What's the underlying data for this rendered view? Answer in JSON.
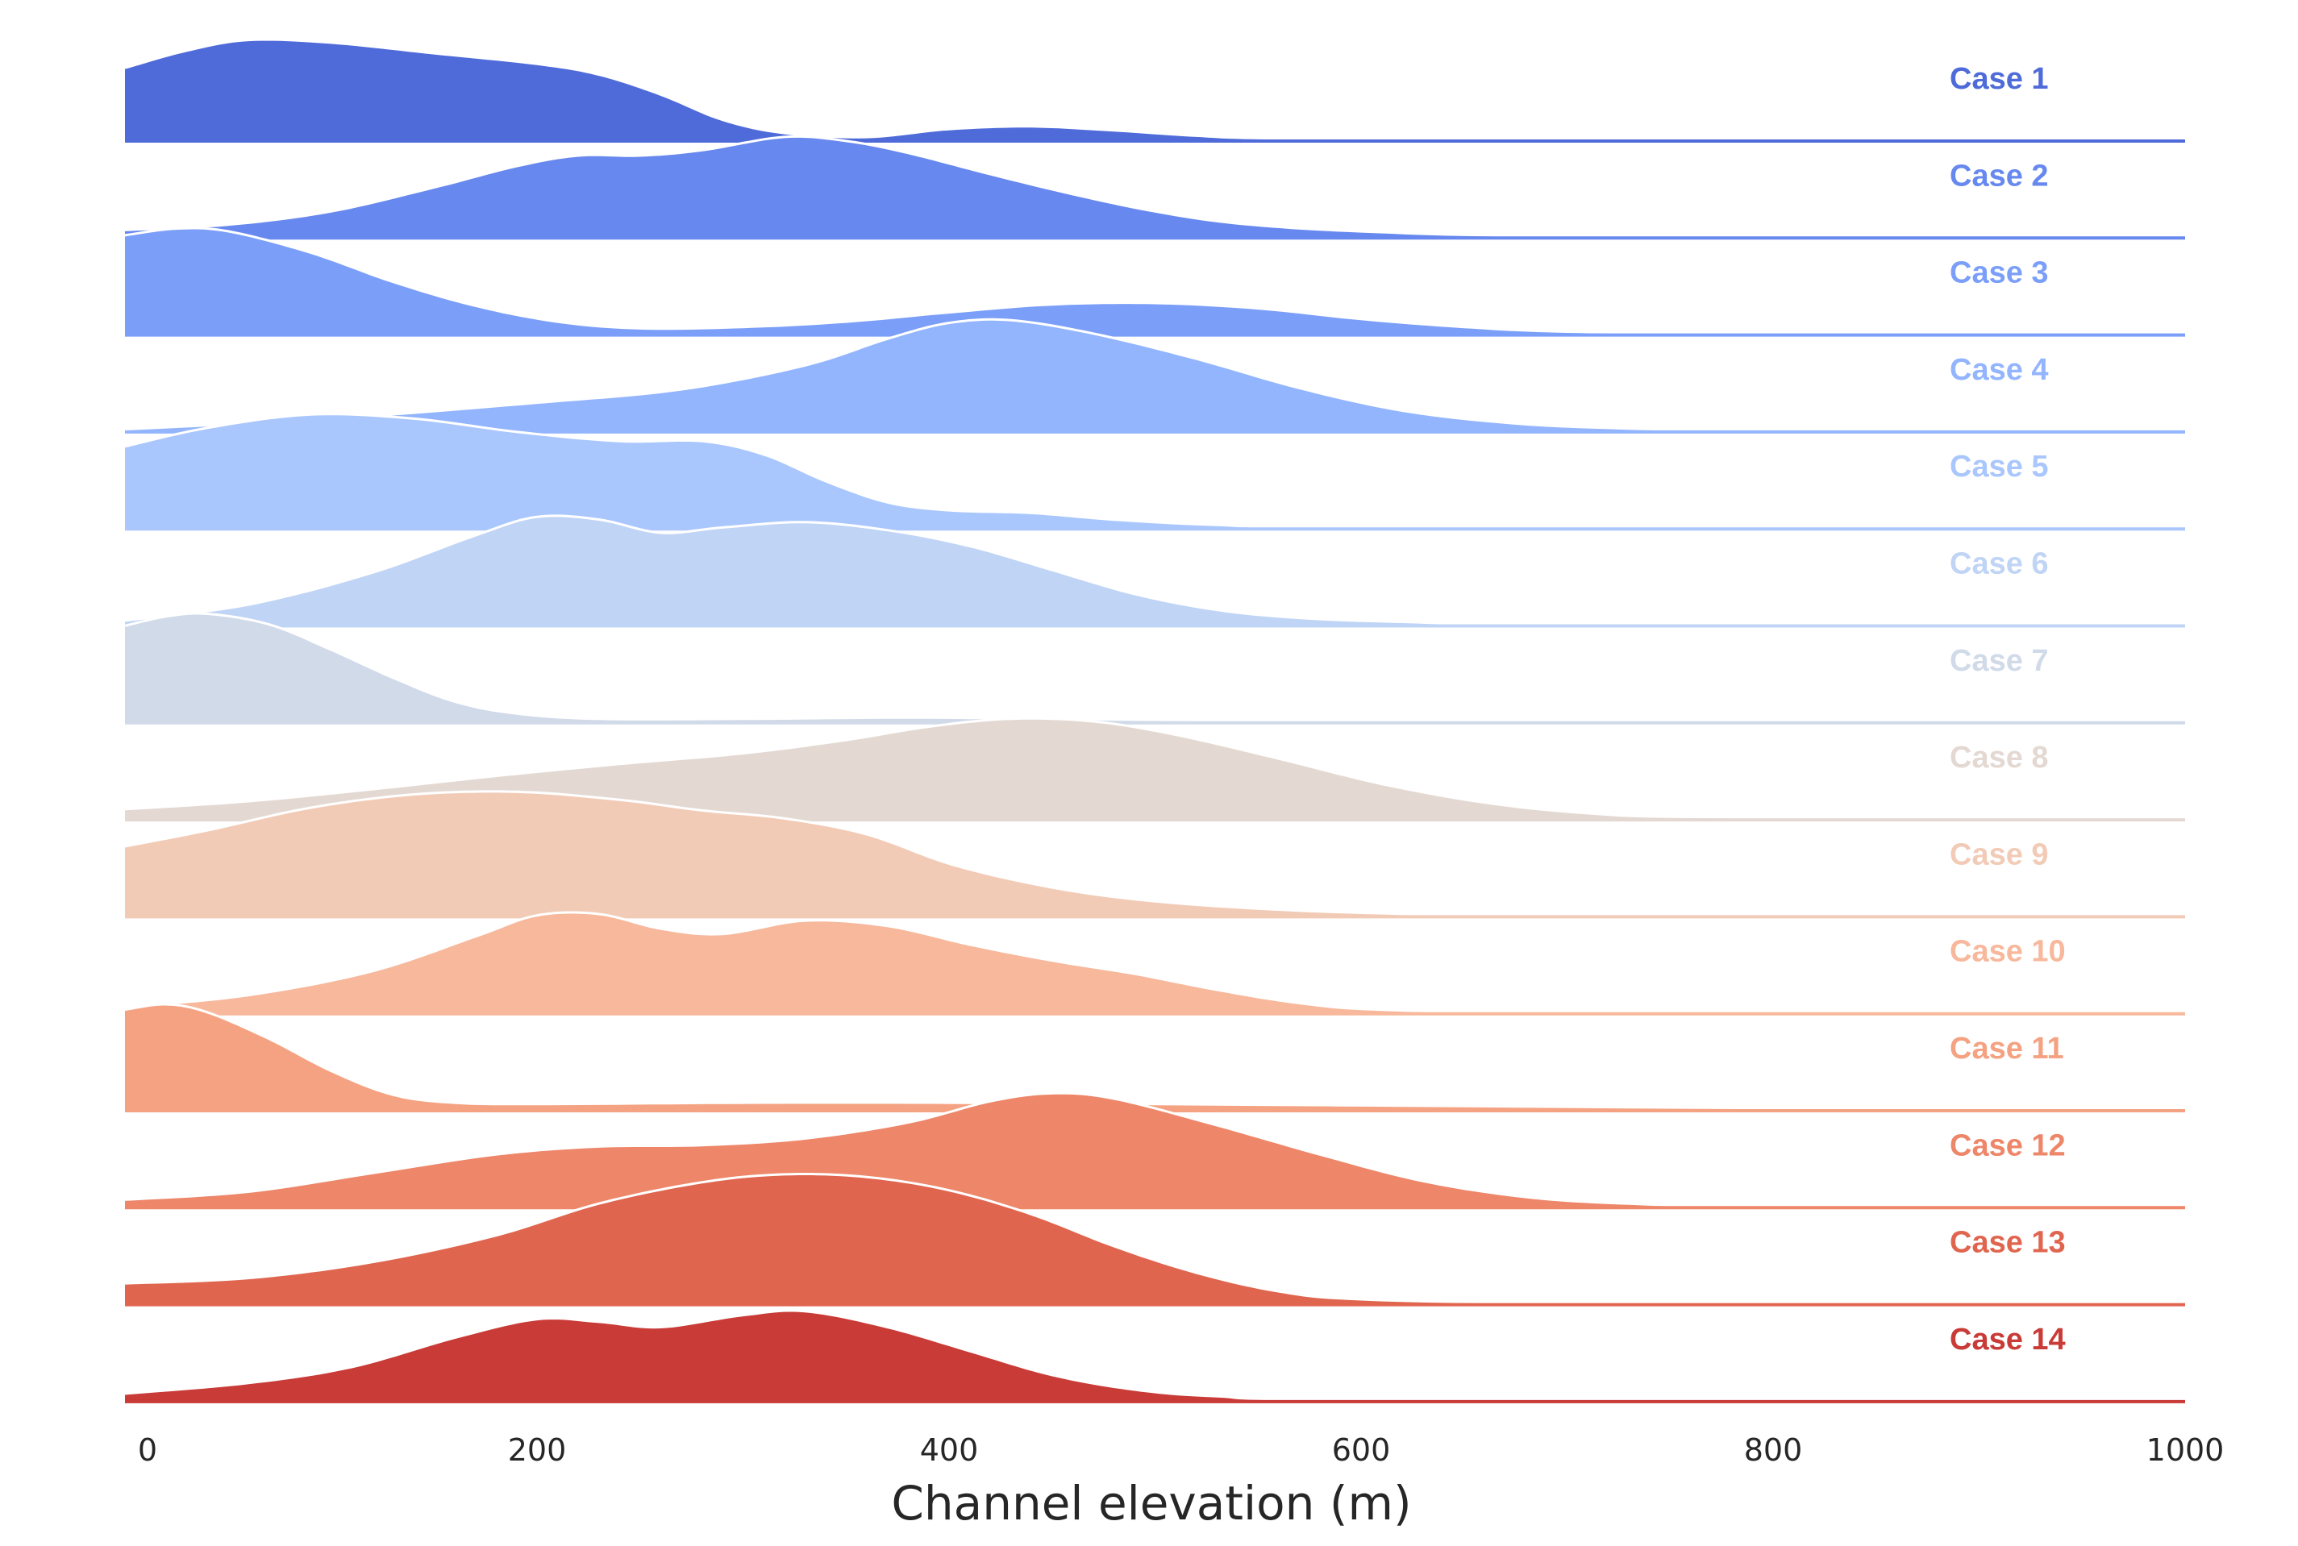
{
  "chart_data": {
    "type": "area",
    "chart_kind": "ridgeline",
    "title": "",
    "xlabel": "Channel elevation (m)",
    "ylabel": "",
    "xlim": [
      0,
      1000
    ],
    "x_ticks": [
      0,
      200,
      400,
      600,
      800,
      1000
    ],
    "grid": false,
    "legend": "labels at right of each ridge",
    "series": [
      {
        "name": "Case 1",
        "color": "#4f6bd9",
        "points": [
          [
            0,
            0.55
          ],
          [
            30,
            0.68
          ],
          [
            60,
            0.76
          ],
          [
            100,
            0.74
          ],
          [
            150,
            0.66
          ],
          [
            200,
            0.58
          ],
          [
            230,
            0.5
          ],
          [
            260,
            0.35
          ],
          [
            290,
            0.16
          ],
          [
            320,
            0.06
          ],
          [
            360,
            0.03
          ],
          [
            400,
            0.09
          ],
          [
            440,
            0.11
          ],
          [
            480,
            0.08
          ],
          [
            520,
            0.04
          ],
          [
            560,
            0.02
          ],
          [
            700,
            0.01
          ],
          [
            1000,
            0.01
          ]
        ]
      },
      {
        "name": "Case 2",
        "color": "#6788ee",
        "points": [
          [
            0,
            0.06
          ],
          [
            50,
            0.1
          ],
          [
            100,
            0.2
          ],
          [
            150,
            0.38
          ],
          [
            190,
            0.54
          ],
          [
            220,
            0.62
          ],
          [
            250,
            0.62
          ],
          [
            280,
            0.66
          ],
          [
            320,
            0.76
          ],
          [
            350,
            0.73
          ],
          [
            380,
            0.64
          ],
          [
            420,
            0.48
          ],
          [
            460,
            0.33
          ],
          [
            500,
            0.2
          ],
          [
            540,
            0.11
          ],
          [
            600,
            0.05
          ],
          [
            700,
            0.015
          ],
          [
            1000,
            0.01
          ]
        ]
      },
      {
        "name": "Case 3",
        "color": "#7b9ff9",
        "points": [
          [
            0,
            0.75
          ],
          [
            25,
            0.8
          ],
          [
            50,
            0.78
          ],
          [
            90,
            0.62
          ],
          [
            130,
            0.4
          ],
          [
            170,
            0.22
          ],
          [
            210,
            0.1
          ],
          [
            250,
            0.05
          ],
          [
            300,
            0.06
          ],
          [
            350,
            0.1
          ],
          [
            400,
            0.17
          ],
          [
            450,
            0.23
          ],
          [
            500,
            0.24
          ],
          [
            550,
            0.2
          ],
          [
            600,
            0.12
          ],
          [
            650,
            0.06
          ],
          [
            700,
            0.025
          ],
          [
            800,
            0.01
          ],
          [
            1000,
            0.01
          ]
        ]
      },
      {
        "name": "Case 4",
        "color": "#93b5fe",
        "points": [
          [
            0,
            0.02
          ],
          [
            100,
            0.1
          ],
          [
            200,
            0.22
          ],
          [
            270,
            0.32
          ],
          [
            330,
            0.5
          ],
          [
            370,
            0.7
          ],
          [
            400,
            0.82
          ],
          [
            430,
            0.84
          ],
          [
            470,
            0.74
          ],
          [
            520,
            0.55
          ],
          [
            570,
            0.33
          ],
          [
            620,
            0.16
          ],
          [
            670,
            0.07
          ],
          [
            720,
            0.03
          ],
          [
            800,
            0.01
          ],
          [
            1000,
            0.01
          ]
        ]
      },
      {
        "name": "Case 5",
        "color": "#aac7fd",
        "points": [
          [
            0,
            0.62
          ],
          [
            40,
            0.76
          ],
          [
            90,
            0.86
          ],
          [
            140,
            0.83
          ],
          [
            190,
            0.73
          ],
          [
            240,
            0.66
          ],
          [
            280,
            0.66
          ],
          [
            310,
            0.56
          ],
          [
            340,
            0.36
          ],
          [
            370,
            0.2
          ],
          [
            400,
            0.14
          ],
          [
            440,
            0.12
          ],
          [
            480,
            0.07
          ],
          [
            530,
            0.03
          ],
          [
            600,
            0.015
          ],
          [
            1000,
            0.01
          ]
        ]
      },
      {
        "name": "Case 6",
        "color": "#c0d4f5",
        "points": [
          [
            0,
            0.04
          ],
          [
            60,
            0.16
          ],
          [
            120,
            0.4
          ],
          [
            170,
            0.68
          ],
          [
            200,
            0.82
          ],
          [
            230,
            0.8
          ],
          [
            260,
            0.7
          ],
          [
            290,
            0.74
          ],
          [
            330,
            0.78
          ],
          [
            370,
            0.72
          ],
          [
            410,
            0.6
          ],
          [
            450,
            0.42
          ],
          [
            490,
            0.24
          ],
          [
            530,
            0.12
          ],
          [
            570,
            0.06
          ],
          [
            620,
            0.03
          ],
          [
            700,
            0.01
          ],
          [
            1000,
            0.01
          ]
        ]
      },
      {
        "name": "Case 7",
        "color": "#d1dae9",
        "points": [
          [
            0,
            0.73
          ],
          [
            20,
            0.8
          ],
          [
            40,
            0.82
          ],
          [
            70,
            0.74
          ],
          [
            100,
            0.55
          ],
          [
            130,
            0.34
          ],
          [
            160,
            0.16
          ],
          [
            190,
            0.07
          ],
          [
            230,
            0.03
          ],
          [
            300,
            0.03
          ],
          [
            380,
            0.04
          ],
          [
            450,
            0.03
          ],
          [
            520,
            0.02
          ],
          [
            600,
            0.015
          ],
          [
            1000,
            0.01
          ]
        ]
      },
      {
        "name": "Case 8",
        "color": "#e4d9d2",
        "points": [
          [
            0,
            0.08
          ],
          [
            60,
            0.14
          ],
          [
            120,
            0.23
          ],
          [
            180,
            0.33
          ],
          [
            240,
            0.42
          ],
          [
            300,
            0.5
          ],
          [
            350,
            0.6
          ],
          [
            390,
            0.7
          ],
          [
            430,
            0.76
          ],
          [
            470,
            0.74
          ],
          [
            510,
            0.64
          ],
          [
            560,
            0.46
          ],
          [
            610,
            0.27
          ],
          [
            660,
            0.13
          ],
          [
            710,
            0.05
          ],
          [
            770,
            0.02
          ],
          [
            1000,
            0.01
          ]
        ]
      },
      {
        "name": "Case 9",
        "color": "#f2cbb7",
        "points": [
          [
            0,
            0.53
          ],
          [
            40,
            0.65
          ],
          [
            90,
            0.82
          ],
          [
            140,
            0.92
          ],
          [
            190,
            0.94
          ],
          [
            240,
            0.88
          ],
          [
            280,
            0.8
          ],
          [
            320,
            0.74
          ],
          [
            360,
            0.62
          ],
          [
            400,
            0.4
          ],
          [
            440,
            0.25
          ],
          [
            480,
            0.15
          ],
          [
            530,
            0.08
          ],
          [
            600,
            0.03
          ],
          [
            700,
            0.01
          ],
          [
            1000,
            0.01
          ]
        ]
      },
      {
        "name": "Case 10",
        "color": "#f7b89c",
        "points": [
          [
            0,
            0.05
          ],
          [
            60,
            0.14
          ],
          [
            120,
            0.32
          ],
          [
            170,
            0.58
          ],
          [
            200,
            0.74
          ],
          [
            230,
            0.75
          ],
          [
            260,
            0.64
          ],
          [
            290,
            0.6
          ],
          [
            330,
            0.7
          ],
          [
            370,
            0.66
          ],
          [
            410,
            0.52
          ],
          [
            450,
            0.4
          ],
          [
            490,
            0.3
          ],
          [
            530,
            0.18
          ],
          [
            570,
            0.08
          ],
          [
            610,
            0.03
          ],
          [
            700,
            0.01
          ],
          [
            1000,
            0.01
          ]
        ]
      },
      {
        "name": "Case 11",
        "color": "#f4a281",
        "points": [
          [
            0,
            0.76
          ],
          [
            20,
            0.8
          ],
          [
            40,
            0.74
          ],
          [
            70,
            0.54
          ],
          [
            100,
            0.3
          ],
          [
            130,
            0.12
          ],
          [
            160,
            0.06
          ],
          [
            200,
            0.05
          ],
          [
            300,
            0.06
          ],
          [
            400,
            0.06
          ],
          [
            500,
            0.05
          ],
          [
            600,
            0.04
          ],
          [
            800,
            0.02
          ],
          [
            1000,
            0.01
          ]
        ]
      },
      {
        "name": "Case 12",
        "color": "#ee8669",
        "points": [
          [
            0,
            0.06
          ],
          [
            60,
            0.12
          ],
          [
            120,
            0.26
          ],
          [
            180,
            0.4
          ],
          [
            230,
            0.46
          ],
          [
            280,
            0.47
          ],
          [
            330,
            0.52
          ],
          [
            380,
            0.64
          ],
          [
            420,
            0.8
          ],
          [
            450,
            0.86
          ],
          [
            480,
            0.82
          ],
          [
            530,
            0.62
          ],
          [
            580,
            0.4
          ],
          [
            630,
            0.2
          ],
          [
            680,
            0.08
          ],
          [
            730,
            0.03
          ],
          [
            800,
            0.01
          ],
          [
            1000,
            0.01
          ]
        ]
      },
      {
        "name": "Case 13",
        "color": "#e0654f",
        "points": [
          [
            0,
            0.16
          ],
          [
            60,
            0.2
          ],
          [
            120,
            0.32
          ],
          [
            180,
            0.52
          ],
          [
            230,
            0.76
          ],
          [
            280,
            0.92
          ],
          [
            320,
            0.98
          ],
          [
            360,
            0.96
          ],
          [
            400,
            0.86
          ],
          [
            440,
            0.68
          ],
          [
            480,
            0.44
          ],
          [
            520,
            0.24
          ],
          [
            560,
            0.1
          ],
          [
            600,
            0.04
          ],
          [
            700,
            0.015
          ],
          [
            1000,
            0.01
          ]
        ]
      },
      {
        "name": "Case 14",
        "color": "#c93b37",
        "points": [
          [
            0,
            0.06
          ],
          [
            60,
            0.14
          ],
          [
            110,
            0.26
          ],
          [
            160,
            0.48
          ],
          [
            200,
            0.62
          ],
          [
            230,
            0.6
          ],
          [
            260,
            0.56
          ],
          [
            300,
            0.65
          ],
          [
            330,
            0.68
          ],
          [
            370,
            0.56
          ],
          [
            410,
            0.38
          ],
          [
            450,
            0.2
          ],
          [
            490,
            0.09
          ],
          [
            530,
            0.04
          ],
          [
            600,
            0.015
          ],
          [
            1000,
            0.01
          ]
        ]
      }
    ]
  }
}
